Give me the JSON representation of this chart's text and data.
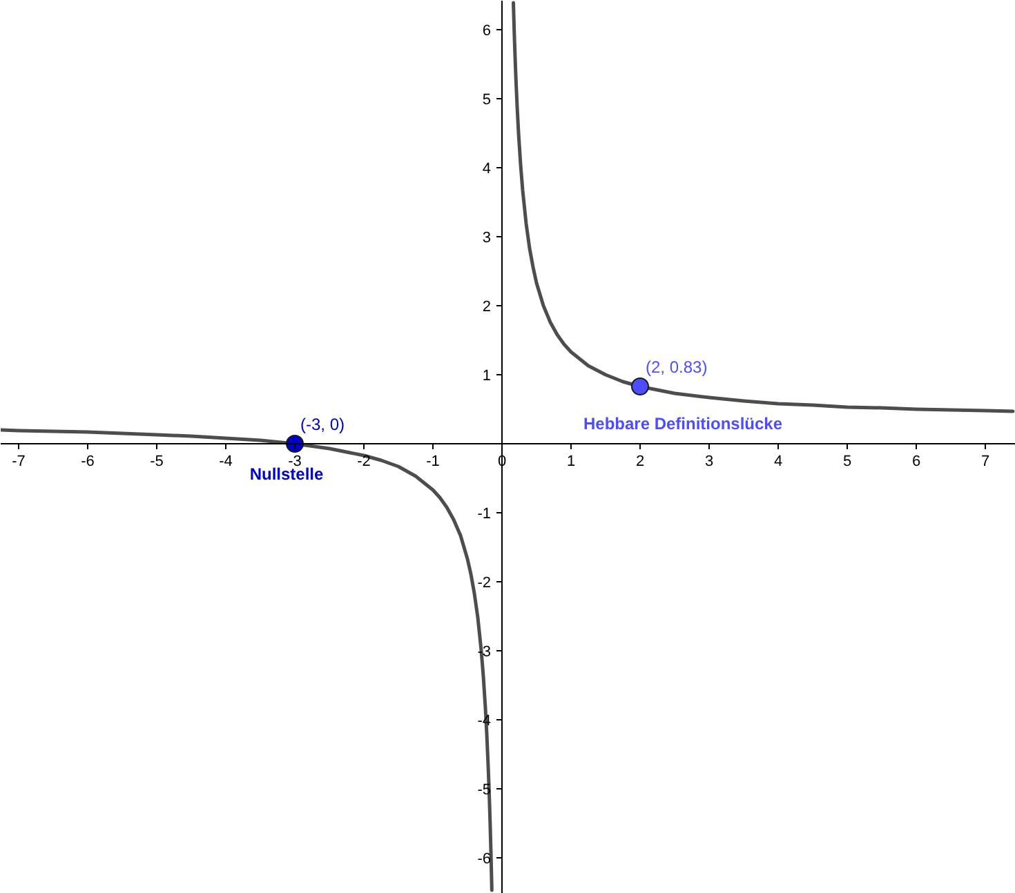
{
  "chart_data": {
    "type": "line",
    "xlim": [
      -7.26,
      7.44
    ],
    "ylim": [
      -6.52,
      6.42
    ],
    "xticks": [
      -7,
      -6,
      -5,
      -4,
      -3,
      -2,
      -1,
      0,
      1,
      2,
      3,
      4,
      5,
      6,
      7
    ],
    "yticks": [
      -6,
      -5,
      -4,
      -3,
      -2,
      -1,
      1,
      2,
      3,
      4,
      5,
      6
    ],
    "grid": false,
    "series": [
      {
        "color": "#4d4d4d",
        "x": [
          -7.25,
          -7,
          -6.5,
          -6,
          -5.5,
          -5,
          -4.5,
          -4,
          -3.5,
          -3,
          -2.5,
          -2,
          -1.75,
          -1.5,
          -1.25,
          -1,
          -0.9,
          -0.8,
          -0.7,
          -0.6,
          -0.5,
          -0.45,
          -0.4,
          -0.35,
          -0.3,
          -0.27,
          -0.24,
          -0.22,
          -0.2,
          -0.19,
          -0.18,
          -0.17,
          -0.16,
          -0.155,
          -0.15,
          -0.147
        ],
        "values": [
          0.2,
          0.19,
          0.18,
          0.17,
          0.15,
          0.13,
          0.11,
          0.08,
          0.05,
          0,
          -0.07,
          -0.17,
          -0.24,
          -0.33,
          -0.47,
          -0.67,
          -0.78,
          -0.92,
          -1.1,
          -1.33,
          -1.67,
          -1.89,
          -2.17,
          -2.52,
          -3.0,
          -3.37,
          -3.83,
          -4.21,
          -4.67,
          -4.93,
          -5.22,
          -5.55,
          -5.92,
          -6.12,
          -6.33,
          -6.47
        ]
      },
      {
        "color": "#4d4d4d",
        "x": [
          0.165,
          0.17,
          0.18,
          0.19,
          0.2,
          0.22,
          0.24,
          0.27,
          0.3,
          0.35,
          0.4,
          0.45,
          0.5,
          0.6,
          0.7,
          0.8,
          0.9,
          1,
          1.25,
          1.5,
          1.75,
          2,
          2.5,
          3,
          3.5,
          4,
          4.5,
          5,
          5.5,
          6,
          6.5,
          7,
          7.4
        ],
        "values": [
          6.39,
          6.22,
          5.89,
          5.6,
          5.33,
          4.88,
          4.5,
          4.04,
          3.67,
          3.19,
          2.83,
          2.56,
          2.33,
          2.0,
          1.76,
          1.58,
          1.44,
          1.33,
          1.13,
          1.0,
          0.9,
          0.83,
          0.73,
          0.67,
          0.62,
          0.58,
          0.56,
          0.53,
          0.52,
          0.5,
          0.49,
          0.48,
          0.47
        ]
      },
      {
        "type": "scatter",
        "marker": "circle",
        "x": [
          -3,
          2
        ],
        "values": [
          0,
          0.83
        ],
        "colors": [
          "#0000cc",
          "#4d4dff"
        ],
        "value_labels": [
          "(-3, 0)",
          "(2, 0.83)"
        ]
      }
    ],
    "annotations": [
      {
        "text": "Nullstelle",
        "x": -3,
        "y": 0
      },
      {
        "text": "Hebbare Definitionslücke",
        "x": 2,
        "y": 0.83
      }
    ]
  }
}
